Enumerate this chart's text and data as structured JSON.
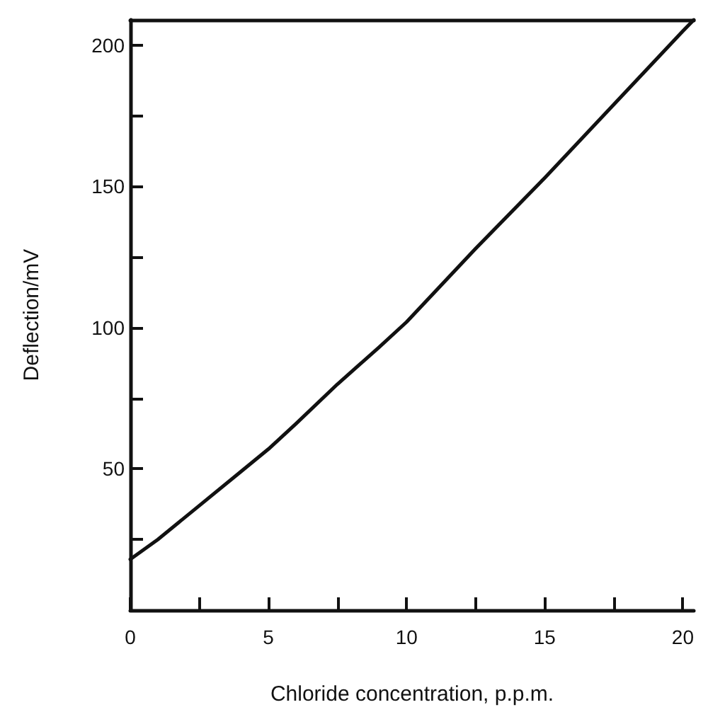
{
  "chart_data": {
    "type": "line",
    "xlabel": "Chloride concentration, p.p.m.",
    "ylabel": "Deflection/mV",
    "x": [
      0,
      1,
      2.5,
      4,
      5,
      6,
      7.5,
      9,
      10,
      12.5,
      15,
      17.5,
      20,
      20.4
    ],
    "series": [
      {
        "color": "#111111",
        "values": [
          18,
          25,
          37,
          49,
          57,
          66,
          80,
          93,
          102,
          128,
          153,
          179,
          205,
          209
        ]
      }
    ],
    "xlim": [
      0,
      20.4
    ],
    "xticks": [
      0,
      {
        "value": 2.5,
        "label": null
      },
      5,
      {
        "value": 7.5,
        "label": null
      },
      10,
      {
        "value": 12.5,
        "label": null
      },
      15,
      {
        "value": 17.5,
        "label": null
      },
      20
    ],
    "ylim": [
      0,
      209
    ],
    "yticks": [
      {
        "value": 25,
        "label": null
      },
      50,
      {
        "value": 75,
        "label": null
      },
      100,
      {
        "value": 125,
        "label": null
      },
      150,
      {
        "value": 175,
        "label": null
      },
      200
    ],
    "grid": false,
    "marker": "none",
    "line_style": "solid"
  }
}
